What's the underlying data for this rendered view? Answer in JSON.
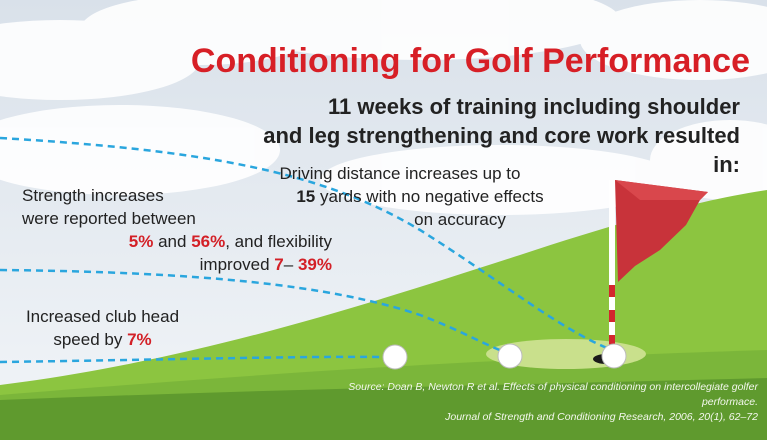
{
  "title": "Conditioning for Golf Performance",
  "subtitle": [
    "11 weeks of training including shoulder",
    "and leg strengthening and core work resulted in:"
  ],
  "driving": {
    "line1": "Driving distance increases up to",
    "value": "15",
    "line2": "yards with no negative effects",
    "line3": "on accuracy"
  },
  "strength": {
    "line1": "Strength increases",
    "line2": "were reported between",
    "low": "5%",
    "and": "and",
    "high": "56%",
    "flex": ", and flexibility",
    "improved": "improved",
    "flex_low": "7",
    "dash": "–",
    "flex_high": "39%"
  },
  "club": {
    "line1": "Increased club head",
    "line2": "speed by",
    "value": "7%"
  },
  "source": [
    "Source: Doan B, Newton R et al. Effects of physical conditioning on intercollegiate golfer performace.",
    "Journal of Strength and Conditioning Research, 2006, 20(1), 62–72"
  ]
}
